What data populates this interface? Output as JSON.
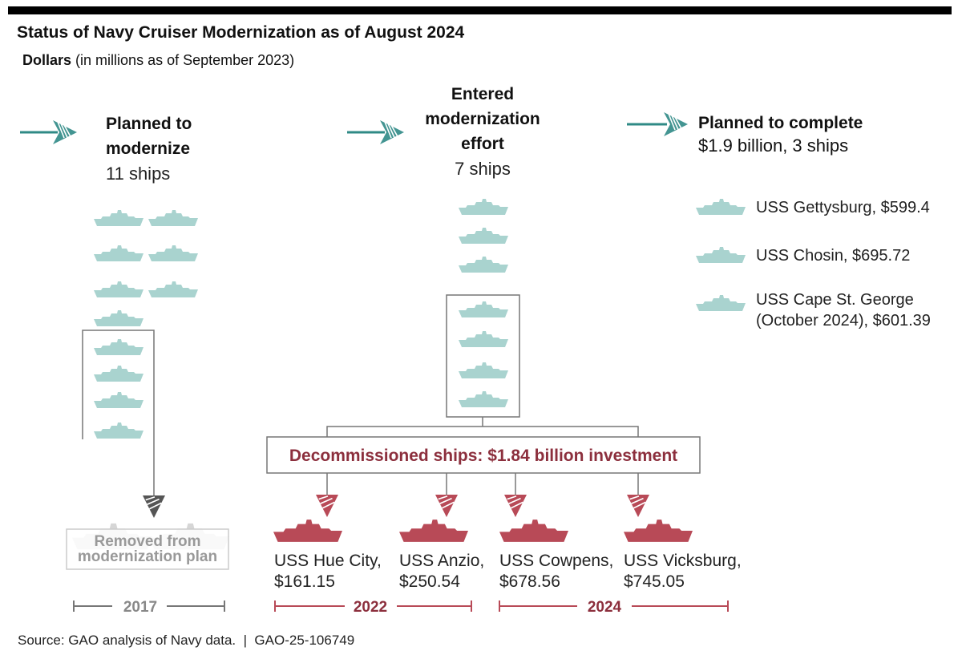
{
  "title": "Status of Navy Cruiser Modernization as of August 2024",
  "subtitle": {
    "bold": "Dollars",
    "rest": "(in millions as of September 2023)"
  },
  "colors": {
    "teal": "#2f8a86",
    "ship_light": "#a9d3cf",
    "decommissioned": "#b84a57",
    "decommissioned_text": "#8c2f3d",
    "removed": "#b8b8b8",
    "line": "#555555"
  },
  "planned": {
    "heading1": "Planned to",
    "heading2": "modernize",
    "count": "11 ships"
  },
  "entered": {
    "heading1": "Entered",
    "heading2": "modernization",
    "heading3": "effort",
    "count": "7 ships"
  },
  "complete": {
    "heading": "Planned to complete",
    "summary": "$1.9 billion, 3 ships",
    "ships": [
      {
        "line1": "USS Gettysburg, $599.4"
      },
      {
        "line1": "USS Chosin, $695.72"
      },
      {
        "line1": "USS Cape St. George",
        "line2": "(October 2024), $601.39"
      }
    ]
  },
  "removed": {
    "line1": "Removed from",
    "line2": "modernization plan",
    "year": "2017"
  },
  "decommissioned": {
    "label": "Decommissioned ships: $1.84 billion investment",
    "ships": [
      {
        "name": "USS Hue City,",
        "cost": "$161.15"
      },
      {
        "name": "USS Anzio,",
        "cost": "$250.54"
      },
      {
        "name": "USS Cowpens,",
        "cost": "$678.56"
      },
      {
        "name": "USS Vicksburg,",
        "cost": "$745.05"
      }
    ],
    "years": [
      "2022",
      "2024"
    ]
  },
  "source": "Source: GAO analysis of Navy data.  |  GAO-25-106749"
}
